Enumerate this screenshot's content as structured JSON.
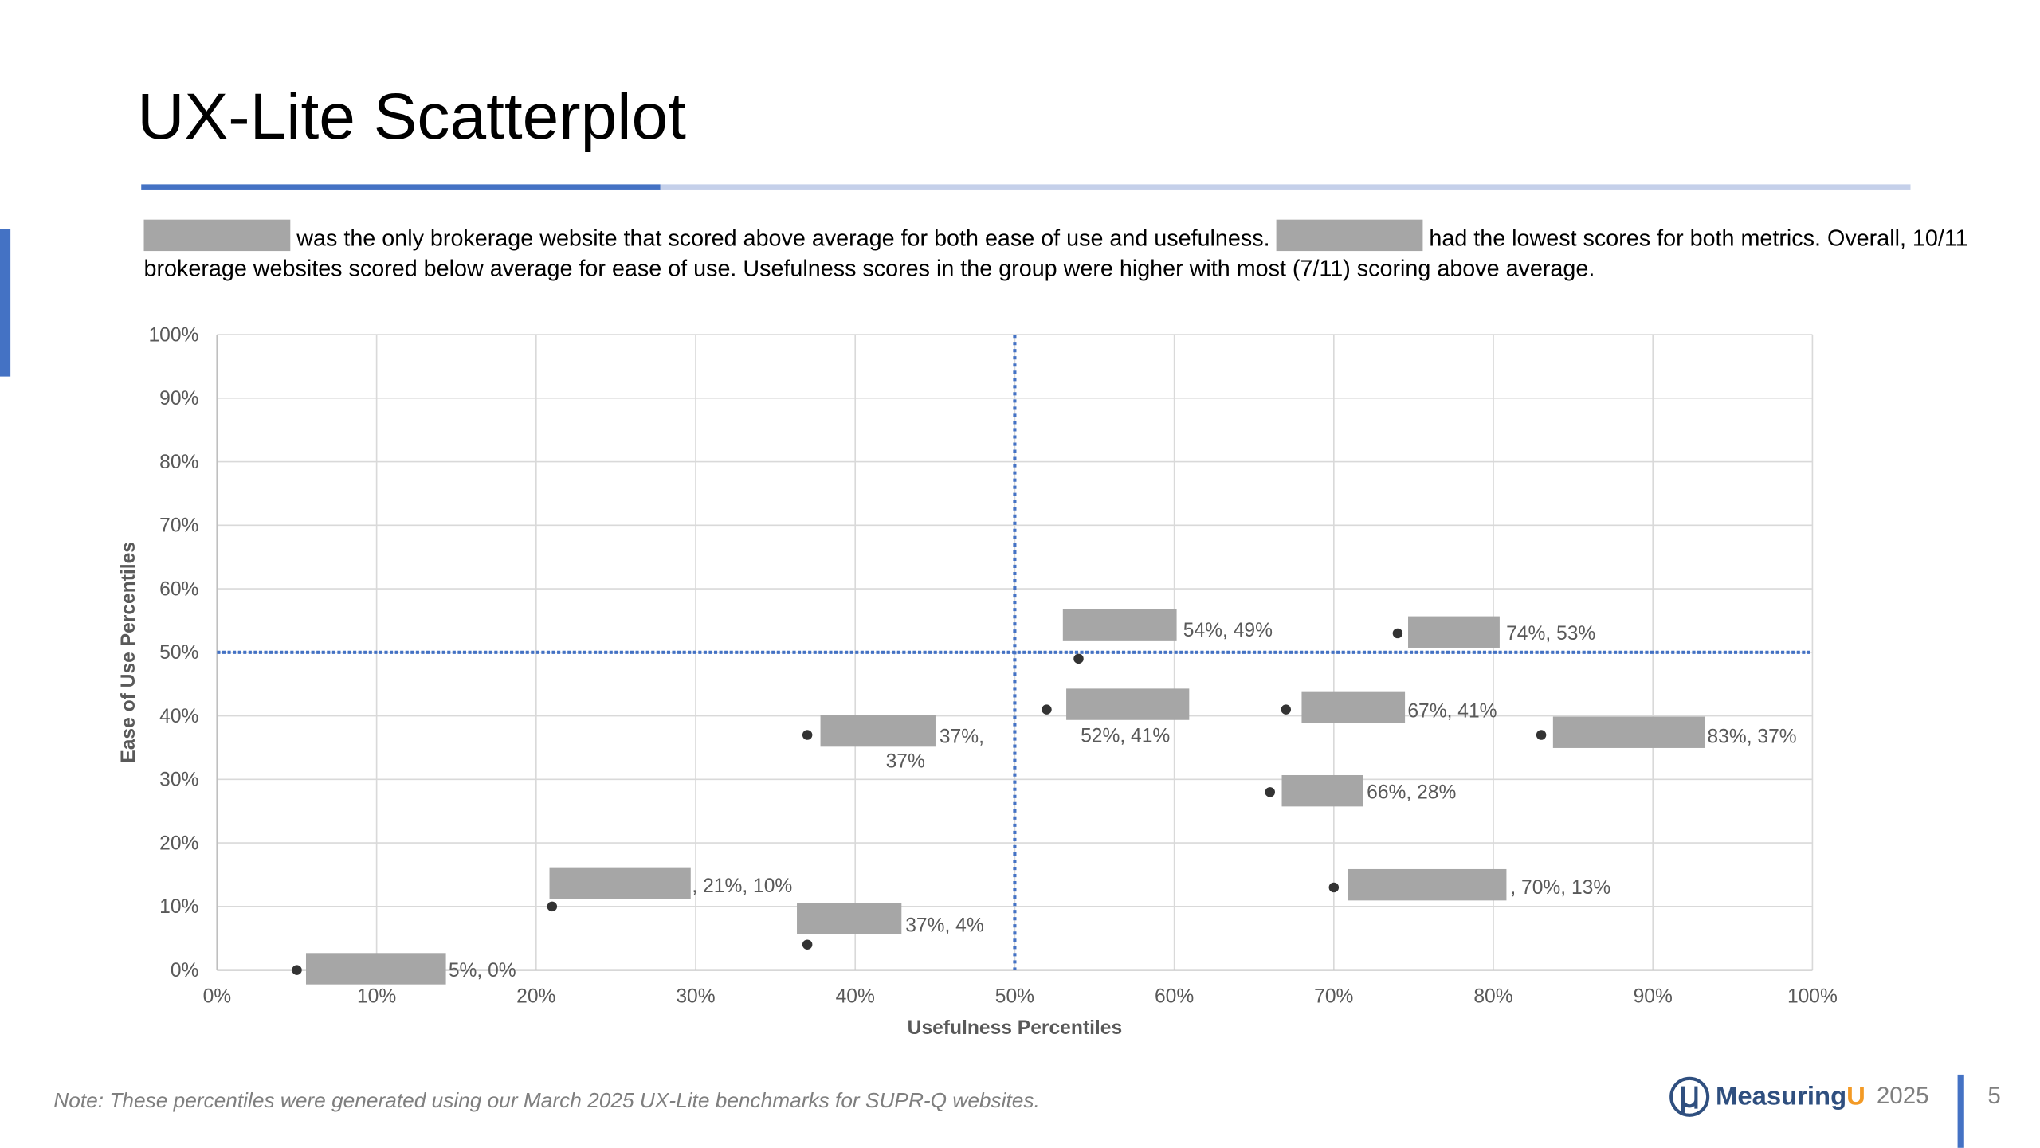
{
  "title": "UX-Lite Scatterplot",
  "summary": {
    "part1": "was the only brokerage website that scored above average for both ease of use and usefulness.",
    "part2": "had the lowest scores for both metrics.",
    "part3": "Overall, 10/11 brokerage websites scored below average for ease of use. Usefulness scores in the group were higher with most (7/11) scoring above average."
  },
  "chart_data": {
    "type": "scatter",
    "xlabel": "Usefulness Percentiles",
    "ylabel": "Ease of Use Percentiles",
    "xlim": [
      0,
      100
    ],
    "ylim": [
      0,
      100
    ],
    "x_ticks": [
      "0%",
      "10%",
      "20%",
      "30%",
      "40%",
      "50%",
      "60%",
      "70%",
      "80%",
      "90%",
      "100%"
    ],
    "y_ticks": [
      "0%",
      "10%",
      "20%",
      "30%",
      "40%",
      "50%",
      "60%",
      "70%",
      "80%",
      "90%",
      "100%"
    ],
    "grid": true,
    "reference_lines": {
      "x": 50,
      "y": 50,
      "color": "#4472c4",
      "style": "dotted"
    },
    "point_color": "#333333",
    "redaction_color": "#a6a6a6",
    "points": [
      {
        "x": 5,
        "y": 0,
        "label": "5%, 0%"
      },
      {
        "x": 21,
        "y": 10,
        "label": ", 21%, 10%"
      },
      {
        "x": 37,
        "y": 4,
        "label": "37%, 4%"
      },
      {
        "x": 37,
        "y": 37,
        "label": "37%, 37%"
      },
      {
        "x": 52,
        "y": 41,
        "label": "52%, 41%"
      },
      {
        "x": 54,
        "y": 49,
        "label": "54%, 49%"
      },
      {
        "x": 67,
        "y": 41,
        "label": "67%, 41%"
      },
      {
        "x": 66,
        "y": 28,
        "label": "66%, 28%"
      },
      {
        "x": 74,
        "y": 53,
        "label": "74%, 53%"
      },
      {
        "x": 83,
        "y": 37,
        "label": "83%, 37%"
      },
      {
        "x": 70,
        "y": 13,
        "label": ", 70%, 13%"
      }
    ]
  },
  "footer": {
    "note": "Note: These percentiles were generated using our March 2025 UX-Lite benchmarks for SUPR-Q websites.",
    "logo": "MeasuringU",
    "year": "2025",
    "page": "5"
  }
}
